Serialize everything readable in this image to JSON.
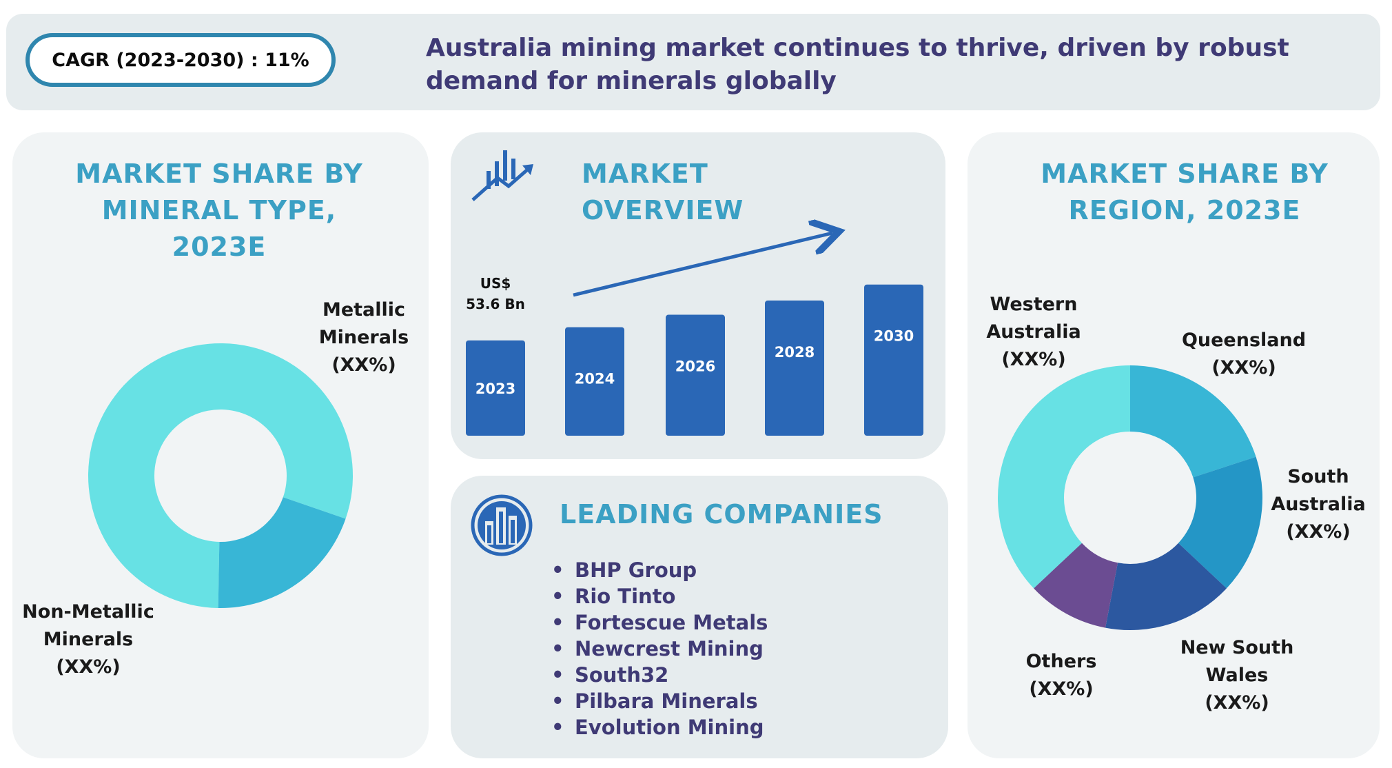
{
  "header": {
    "cagr": "CAGR (2023-2030) : 11%",
    "headline": "Australia mining market continues to thrive, driven by robust demand for minerals globally"
  },
  "mineral": {
    "title": "MARKET SHARE BY MINERAL TYPE, 2023E",
    "labels": [
      "Metallic\nMinerals\n(XX%)",
      "Non-Metallic\nMinerals\n(XX%)"
    ]
  },
  "overview": {
    "title": "MARKET OVERVIEW",
    "value_label_line1": "US$",
    "value_label_line2": "53.6 Bn"
  },
  "companies": {
    "title": "LEADING COMPANIES",
    "items": [
      "BHP Group",
      "Rio Tinto",
      "Fortescue Metals",
      "Newcrest Mining",
      "South32",
      "Pilbara Minerals",
      "Evolution Mining"
    ]
  },
  "region": {
    "title": "MARKET SHARE BY REGION, 2023E",
    "labels": [
      "Western\nAustralia\n(XX%)",
      "Queensland\n(XX%)",
      "South\nAustralia\n(XX%)",
      "New South\nWales\n(XX%)",
      "Others\n(XX%)"
    ]
  },
  "colors": {
    "bar": "#2a67b6",
    "title": "#3ba0c4",
    "headline": "#3f3a75",
    "metallic": "#67e1e4",
    "non_metallic": "#38b6d6",
    "western_australia": "#67e1e4",
    "queensland": "#38b6d6",
    "south_australia": "#2496c6",
    "new_south_wales": "#2c58a0",
    "others": "#6b4c92"
  },
  "chart_data": [
    {
      "type": "pie",
      "title": "MARKET SHARE BY MINERAL TYPE, 2023E",
      "labels": [
        "Metallic Minerals",
        "Non-Metallic Minerals"
      ],
      "values": [
        80,
        20
      ],
      "value_labels": [
        "XX%",
        "XX%"
      ]
    },
    {
      "type": "bar",
      "title": "MARKET OVERVIEW",
      "categories": [
        "2023",
        "2024",
        "2026",
        "2028",
        "2030"
      ],
      "values": [
        53.6,
        61,
        68,
        76,
        85
      ],
      "annotations": [
        "US$ 53.6 Bn"
      ],
      "note": "only 2023 value is labeled; remaining values estimated from bar heights"
    },
    {
      "type": "pie",
      "title": "MARKET SHARE BY REGION, 2023E",
      "labels": [
        "Queensland",
        "South Australia",
        "New South Wales",
        "Others",
        "Western Australia"
      ],
      "values": [
        20,
        17,
        16,
        10,
        37
      ],
      "value_labels": [
        "XX%",
        "XX%",
        "XX%",
        "XX%",
        "XX%"
      ]
    }
  ]
}
